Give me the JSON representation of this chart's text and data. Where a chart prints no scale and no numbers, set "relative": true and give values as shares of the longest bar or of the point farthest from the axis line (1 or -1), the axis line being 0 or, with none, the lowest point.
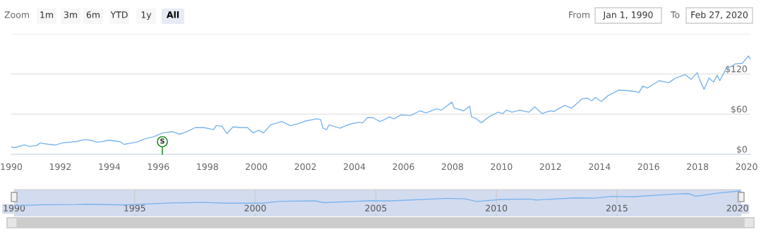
{
  "chart_data": [
    {
      "type": "line",
      "color": "#7cb5ec",
      "grid": "y",
      "xlim": [
        "1990-01-01",
        "2020-02-27"
      ],
      "ylim": [
        0,
        180
      ],
      "xticks": [
        "1990",
        "1992",
        "1994",
        "1996",
        "1998",
        "2000",
        "2002",
        "2004",
        "2006",
        "2008",
        "2010",
        "2012",
        "2014",
        "2016",
        "2018",
        "2020"
      ],
      "yticks": [
        {
          "value": 0,
          "label": "$0"
        },
        {
          "value": 60,
          "label": "$60"
        },
        {
          "value": 120,
          "label": "$120"
        },
        {
          "value": 180,
          "label": null
        }
      ],
      "annotations": [
        "Zoom",
        "1m",
        "3m",
        "6m",
        "YTD",
        "1y",
        "All",
        "From",
        "Jan 1, 1990",
        "To",
        "Feb 27, 2020",
        "S"
      ],
      "x": [
        "1990-01-01",
        "1990-02-20",
        "1990-07-12",
        "1990-09-24",
        "1991-01-12",
        "1991-03-06",
        "1991-07-08",
        "1991-10-27",
        "1992-01-26",
        "1992-08-11",
        "1993-01-01",
        "1993-04-06",
        "1993-07-01",
        "1994-01-01",
        "1994-06-13",
        "1994-08-07",
        "1995-02-03",
        "1995-06-10",
        "1995-10-12",
        "1996-03-07",
        "1996-07-26",
        "1996-11-13",
        "1997-03-04",
        "1997-07-05",
        "1997-11-10",
        "1998-04-05",
        "1998-05-12",
        "1998-08-07",
        "1998-10-19",
        "1999-01-19",
        "1999-05-08",
        "1999-08-22",
        "1999-11-10",
        "2000-02-03",
        "2000-04-16",
        "2000-07-31",
        "2001-01-12",
        "2001-05-19",
        "2001-09-20",
        "2002-01-08",
        "2002-06-21",
        "2002-08-15",
        "2002-09-20",
        "2002-11-13",
        "2002-12-16",
        "2003-05-30",
        "2003-10-20",
        "2004-03-13",
        "2004-05-04",
        "2004-07-16",
        "2004-09-27",
        "2005-01-15",
        "2005-03-25",
        "2005-06-03",
        "2005-08-12",
        "2005-11-25",
        "2006-04-16",
        "2006-09-05",
        "2006-12-02",
        "2007-05-08",
        "2007-07-20",
        "2007-12-24",
        "2008-01-30",
        "2008-06-18",
        "2008-09-13",
        "2008-10-12",
        "2008-12-28",
        "2009-03-04",
        "2009-06-25",
        "2009-11-10",
        "2010-01-23",
        "2010-03-14",
        "2010-06-10",
        "2010-09-24",
        "2011-02-14",
        "2011-05-12",
        "2011-08-26",
        "2011-12-28",
        "2012-02-21",
        "2012-07-27",
        "2012-11-10",
        "2013-04-16",
        "2013-06-28",
        "2013-09-06",
        "2013-10-30",
        "2014-01-26",
        "2014-05-12",
        "2014-10-16",
        "2015-03-08",
        "2015-06-21",
        "2015-08-11",
        "2015-10-05",
        "2015-12-13",
        "2016-06-07",
        "2016-10-27",
        "2017-02-10",
        "2017-07-02",
        "2017-09-28",
        "2017-12-24",
        "2018-01-30",
        "2018-04-08",
        "2018-06-20",
        "2018-08-28",
        "2018-10-19",
        "2018-11-28",
        "2019-02-24",
        "2019-07-16",
        "2019-10-30",
        "2020-01-30",
        "2020-02-27"
      ],
      "values": [
        11,
        10,
        14,
        12,
        13,
        17,
        15,
        14,
        17,
        19,
        22,
        21,
        18,
        21,
        19,
        15,
        18,
        23,
        26,
        32,
        34,
        30,
        34,
        40,
        40,
        37,
        43,
        42,
        31,
        41,
        40,
        40,
        32,
        36,
        32,
        44,
        49,
        43,
        46,
        50,
        53,
        52,
        39,
        37,
        44,
        39,
        45,
        48,
        47,
        55,
        55,
        49,
        52,
        56,
        53,
        59,
        58,
        65,
        62,
        68,
        66,
        78,
        69,
        65,
        72,
        56,
        53,
        47,
        56,
        63,
        61,
        66,
        63,
        66,
        63,
        71,
        61,
        65,
        64,
        73,
        69,
        83,
        84,
        80,
        85,
        79,
        88,
        96,
        95,
        94,
        92,
        102,
        99,
        110,
        107,
        114,
        119,
        112,
        122,
        112,
        97,
        114,
        108,
        118,
        110,
        127,
        135,
        136,
        147,
        142
      ]
    },
    {
      "type": "line",
      "color": "#7cb5ec",
      "relative": true,
      "grid": "x",
      "tick_labels": "x",
      "xlim": [
        "1990-01-01",
        "2020-02-27"
      ],
      "xticks": [
        "1990",
        "1995",
        "2000",
        "2005",
        "2010",
        "2015",
        "2020"
      ],
      "x": [
        "1990-01-01",
        "1990-02-20",
        "1991-03-06",
        "1992-08-11",
        "1993-01-01",
        "1994-08-07",
        "1996-07-26",
        "1997-11-10",
        "1998-10-19",
        "2000-04-16",
        "2001-01-12",
        "2002-06-21",
        "2002-11-13",
        "2004-09-27",
        "2005-08-12",
        "2007-12-24",
        "2008-09-13",
        "2009-03-04",
        "2010-03-14",
        "2011-05-12",
        "2011-08-26",
        "2013-04-16",
        "2014-01-26",
        "2014-10-16",
        "2015-08-11",
        "2017-07-02",
        "2017-12-24",
        "2018-04-08",
        "2019-02-24",
        "2020-01-30",
        "2020-02-27"
      ],
      "values": [
        0.01,
        0,
        0.05,
        0.07,
        0.09,
        0.04,
        0.18,
        0.22,
        0.16,
        0.16,
        0.29,
        0.32,
        0.2,
        0.33,
        0.32,
        0.5,
        0.46,
        0.28,
        0.42,
        0.45,
        0.38,
        0.53,
        0.51,
        0.63,
        0.6,
        0.8,
        0.82,
        0.64,
        0.85,
        1,
        0.97
      ]
    }
  ]
}
